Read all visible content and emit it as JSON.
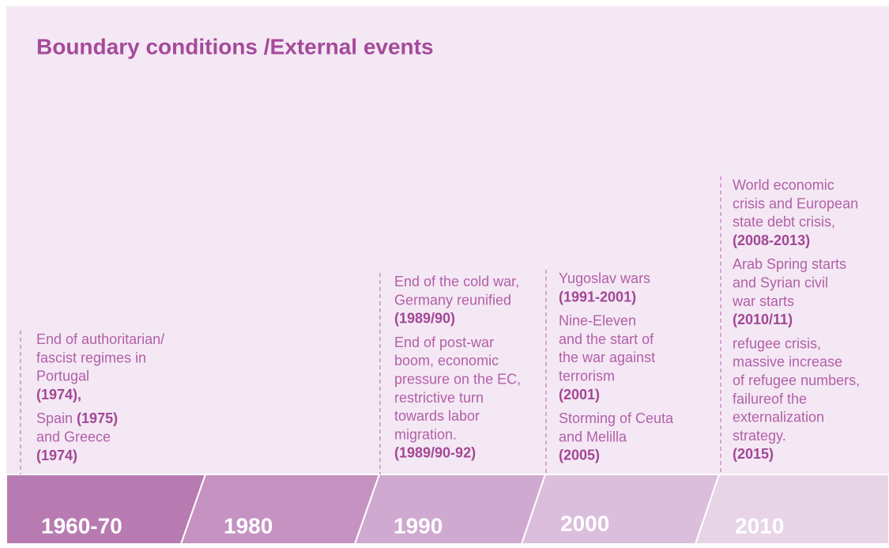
{
  "title": "Boundary conditions /External events",
  "columns": [
    {
      "events": [
        [
          [
            {
              "t": "End of authoritarian/"
            }
          ],
          [
            {
              "t": "fascist  regimes in"
            }
          ],
          [
            {
              "t": "Portugal"
            }
          ],
          [
            {
              "t": "(1974),",
              "b": true
            }
          ]
        ],
        [
          [
            {
              "t": "Spain "
            },
            {
              "t": "(1975)",
              "b": true
            }
          ],
          [
            {
              "t": "and Greece"
            }
          ],
          [
            {
              "t": "(1974)",
              "b": true
            }
          ]
        ]
      ]
    },
    {
      "events": [
        [
          [
            {
              "t": "End of the cold war,"
            }
          ],
          [
            {
              "t": "Germany reunified"
            }
          ],
          [
            {
              "t": "(1989/90)",
              "b": true
            }
          ]
        ],
        [
          [
            {
              "t": "End of post-war"
            }
          ],
          [
            {
              "t": "boom, economic"
            }
          ],
          [
            {
              "t": "pressure on the EC,"
            }
          ],
          [
            {
              "t": "restrictive turn"
            }
          ],
          [
            {
              "t": "towards labor"
            }
          ],
          [
            {
              "t": "migration."
            }
          ],
          [
            {
              "t": "(1989/90-92)",
              "b": true
            }
          ]
        ]
      ]
    },
    {
      "events": [
        [
          [
            {
              "t": "Yugoslav wars"
            }
          ],
          [
            {
              "t": "(1991-2001)",
              "b": true
            }
          ]
        ],
        [
          [
            {
              "t": "Nine-Eleven"
            }
          ],
          [
            {
              "t": "and the start of"
            }
          ],
          [
            {
              "t": "the war against"
            }
          ],
          [
            {
              "t": "terrorism"
            }
          ],
          [
            {
              "t": "(2001)",
              "b": true
            }
          ]
        ],
        [
          [
            {
              "t": "Storming of Ceuta"
            }
          ],
          [
            {
              "t": "and Melilla"
            }
          ],
          [
            {
              "t": "(2005)",
              "b": true
            }
          ]
        ]
      ]
    },
    {
      "events": [
        [
          [
            {
              "t": "World economic"
            }
          ],
          [
            {
              "t": "crisis and European"
            }
          ],
          [
            {
              "t": "state debt crisis,"
            }
          ],
          [
            {
              "t": "(2008-2013)",
              "b": true
            }
          ]
        ],
        [
          [
            {
              "t": "Arab Spring starts"
            }
          ],
          [
            {
              "t": "and Syrian civil"
            }
          ],
          [
            {
              "t": "war starts"
            }
          ],
          [
            {
              "t": "(2010/11)",
              "b": true
            }
          ]
        ],
        [
          [
            {
              "t": "refugee crisis,"
            }
          ],
          [
            {
              "t": "massive increase"
            }
          ],
          [
            {
              "t": "of refugee numbers,"
            }
          ],
          [
            {
              "t": "failureof the"
            }
          ],
          [
            {
              "t": "externalization"
            }
          ],
          [
            {
              "t": "strategy."
            }
          ],
          [
            {
              "t": "(2015)",
              "b": true
            }
          ]
        ]
      ]
    }
  ],
  "periods": [
    "1960-70",
    "1980",
    "1990",
    "2000",
    "2010"
  ]
}
